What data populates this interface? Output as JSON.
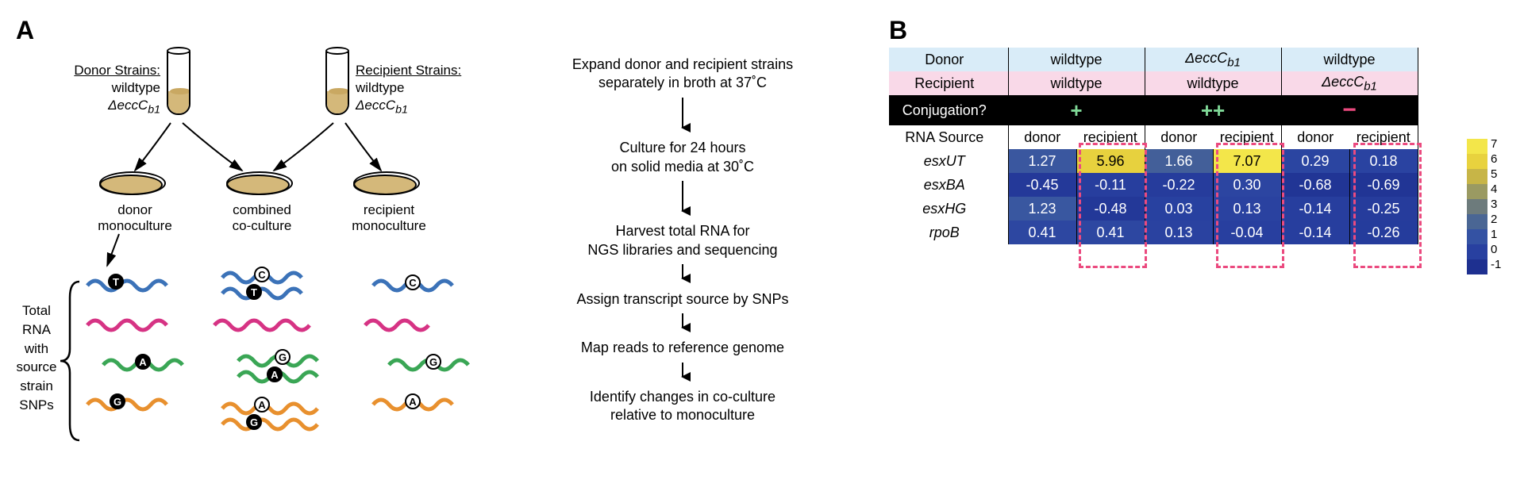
{
  "panelA": {
    "label": "A",
    "donor_strains_hdr": "Donor Strains:",
    "donor_strains_l1": "wildtype",
    "donor_strains_l2": "ΔeccC",
    "donor_strains_l2_sub": "b1",
    "recip_strains_hdr": "Recipient Strains:",
    "recip_strains_l1": "wildtype",
    "recip_strains_l2": "ΔeccC",
    "recip_strains_l2_sub": "b1",
    "donor_mono_l1": "donor",
    "donor_mono_l2": "monoculture",
    "combined_l1": "combined",
    "combined_l2": "co-culture",
    "recip_mono_l1": "recipient",
    "recip_mono_l2": "monoculture",
    "bracket_l1": "Total",
    "bracket_l2": "RNA",
    "bracket_l3": "with",
    "bracket_l4": "source",
    "bracket_l5": "strain",
    "bracket_l6": "SNPs",
    "snp_letters": {
      "T": "T",
      "C": "C",
      "A": "A",
      "G": "G"
    },
    "rna_colors": {
      "blue": "#3b72b8",
      "pink": "#d63384",
      "green": "#3aa655",
      "orange": "#e8902e"
    },
    "steps": [
      "Expand donor and recipient strains\nseparately in broth at 37˚C",
      "Culture for 24 hours\non solid media at 30˚C",
      "Harvest total RNA for\nNGS libraries and sequencing",
      "Assign transcript source by SNPs",
      "Map reads to reference genome",
      "Identify changes in co-culture\nrelative to monoculture"
    ]
  },
  "panelB": {
    "label": "B",
    "headers": {
      "donor": "Donor",
      "recipient": "Recipient",
      "conjugation": "Conjugation?",
      "rna_source": "RNA Source",
      "donor_src": "donor",
      "recip_src": "recipient"
    },
    "columns": [
      {
        "donor": "wildtype",
        "recipient": "wildtype",
        "conj": "+"
      },
      {
        "donor": "ΔeccC_b1",
        "recipient": "wildtype",
        "conj": "++"
      },
      {
        "donor": "wildtype",
        "recipient": "ΔeccC_b1",
        "conj": "−"
      }
    ],
    "genes": [
      "esxUT",
      "esxBA",
      "esxHG",
      "rpoB"
    ],
    "values": [
      [
        1.27,
        5.96,
        1.66,
        7.07,
        0.29,
        0.18
      ],
      [
        -0.45,
        -0.11,
        -0.22,
        0.3,
        -0.68,
        -0.69
      ],
      [
        1.23,
        -0.48,
        0.03,
        0.13,
        -0.14,
        -0.25
      ],
      [
        0.41,
        0.41,
        0.13,
        -0.04,
        -0.14,
        -0.26
      ]
    ],
    "colorscale": {
      "min": -1,
      "max": 7,
      "stops": [
        {
          "v": 7,
          "c": "#f3e64a"
        },
        {
          "v": 6,
          "c": "#e8d23e"
        },
        {
          "v": 5,
          "c": "#c7b547"
        },
        {
          "v": 4,
          "c": "#9a9a62"
        },
        {
          "v": 3,
          "c": "#6d7b7c"
        },
        {
          "v": 2,
          "c": "#4a6694"
        },
        {
          "v": 1,
          "c": "#3452a3"
        },
        {
          "v": 0,
          "c": "#2840a0"
        },
        {
          "v": -1,
          "c": "#1e3090"
        }
      ],
      "ticks": [
        7,
        6,
        5,
        4,
        3,
        2,
        1,
        0,
        -1
      ]
    }
  },
  "styles": {
    "dish_color": "#d4b87a",
    "arrow_color": "#000000"
  }
}
